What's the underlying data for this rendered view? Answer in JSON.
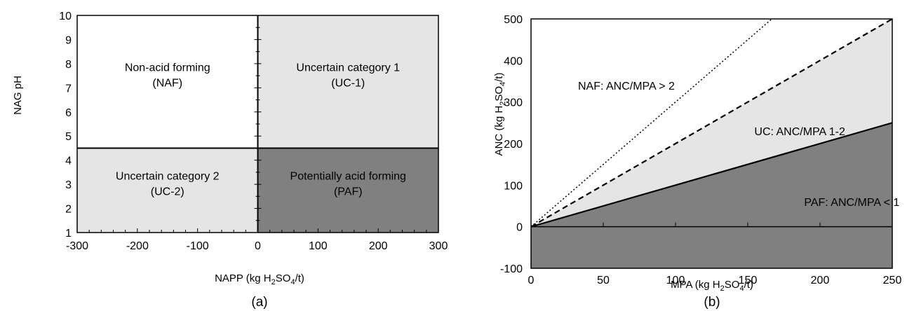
{
  "chart_data": [
    {
      "type": "area",
      "caption": "(a)",
      "xlabel": {
        "pre": "NAPP (kg H",
        "sub1": "2",
        "mid": "SO",
        "sub2": "4",
        "post": "/t)"
      },
      "ylabel": "NAG pH",
      "xlim": [
        -300,
        300
      ],
      "ylim": [
        1,
        10
      ],
      "x_ticks": [
        -300,
        -200,
        -100,
        0,
        100,
        200,
        300
      ],
      "y_ticks": [
        1,
        2,
        3,
        4,
        5,
        6,
        7,
        8,
        9,
        10
      ],
      "threshold_x": 0,
      "threshold_y": 4.5,
      "regions": [
        {
          "name": "naf",
          "x": [
            -300,
            0
          ],
          "y": [
            4.5,
            10
          ],
          "color": "#ffffff",
          "line1": "Non-acid forming",
          "line2": "(NAF)",
          "label_at": [
            -150,
            7.4
          ]
        },
        {
          "name": "uc1",
          "x": [
            0,
            300
          ],
          "y": [
            4.5,
            10
          ],
          "color": "#e5e5e5",
          "line1": "Uncertain category 1",
          "line2": "(UC-1)",
          "label_at": [
            150,
            7.4
          ]
        },
        {
          "name": "uc2",
          "x": [
            -300,
            0
          ],
          "y": [
            1,
            4.5
          ],
          "color": "#e5e5e5",
          "line1": "Uncertain category 2",
          "line2": "(UC-2)",
          "label_at": [
            -150,
            2.9
          ]
        },
        {
          "name": "paf",
          "x": [
            0,
            300
          ],
          "y": [
            1,
            4.5
          ],
          "color": "#808080",
          "line1": "Potentially acid forming",
          "line2": "(PAF)",
          "label_at": [
            150,
            2.9
          ]
        }
      ]
    },
    {
      "type": "line",
      "caption": "(b)",
      "xlabel": {
        "pre": "MPA (kg H",
        "sub1": "2",
        "mid": "SO",
        "sub2": "4",
        "post": "/t)"
      },
      "ylabel": {
        "pre": "ANC (kg H",
        "sub1": "2",
        "mid": "SO",
        "sub2": "4",
        "post": "/t)"
      },
      "xlim": [
        0,
        250
      ],
      "ylim": [
        -100,
        500
      ],
      "x_ticks": [
        0,
        50,
        100,
        150,
        200,
        250
      ],
      "y_ticks": [
        -100,
        0,
        100,
        200,
        300,
        400,
        500
      ],
      "series": [
        {
          "ratio": 3,
          "style": "dotted",
          "x": [
            0,
            166.7
          ],
          "y": [
            0,
            500
          ]
        },
        {
          "ratio": 2,
          "style": "dashed",
          "x": [
            0,
            250
          ],
          "y": [
            0,
            500
          ]
        },
        {
          "ratio": 1,
          "style": "solid",
          "x": [
            0,
            250
          ],
          "y": [
            0,
            250
          ]
        }
      ],
      "colors": {
        "uc_fill": "#e5e5e5",
        "paf_fill": "#808080",
        "background": "#ffffff"
      },
      "annotations": [
        {
          "name": "naf",
          "text": "NAF: ANC/MPA > 2",
          "x": 66,
          "y": 340
        },
        {
          "name": "uc",
          "text": "UC: ANC/MPA 1-2",
          "x": 186,
          "y": 230
        },
        {
          "name": "paf",
          "text": "PAF: ANC/MPA < 1",
          "x": 222,
          "y": 60
        }
      ]
    }
  ]
}
